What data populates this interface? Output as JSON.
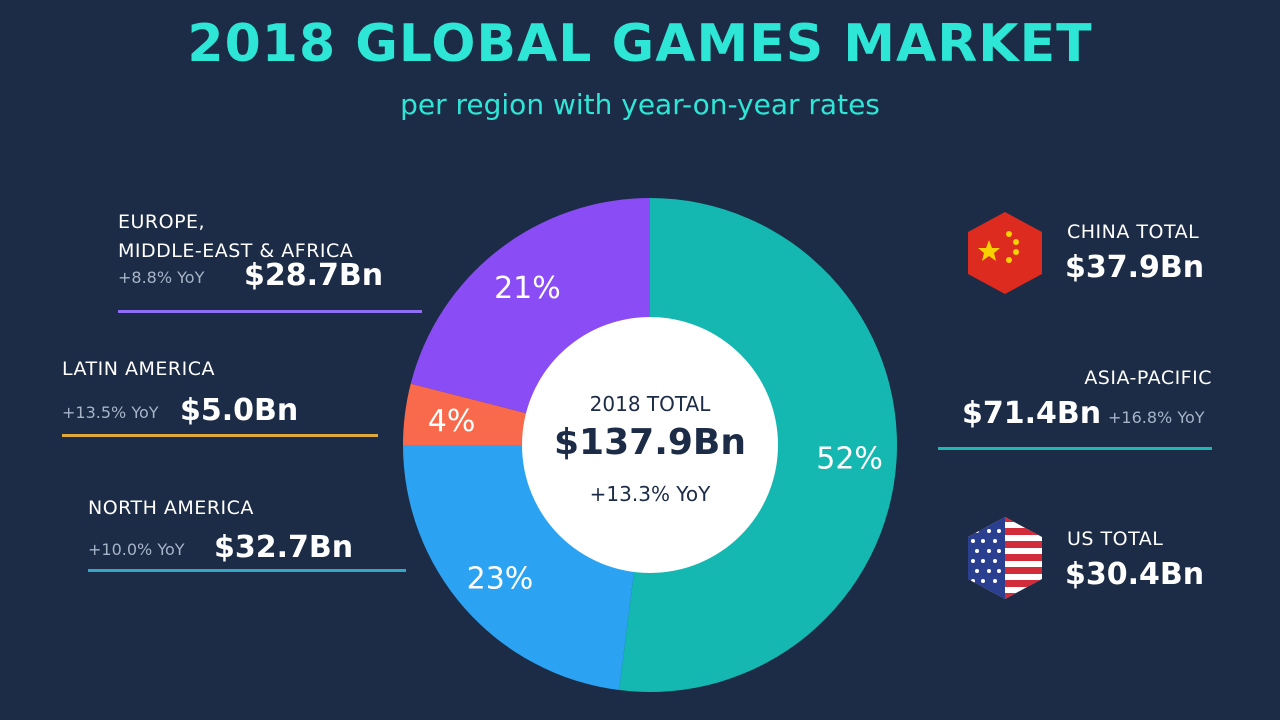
{
  "title": "2018 GLOBAL GAMES MARKET",
  "subtitle": "per region with year-on-year rates",
  "colors": {
    "background": "#1c2b46",
    "title": "#2ee6d6",
    "apac": "#14b8b0",
    "emea": "#8a4cf5",
    "latam": "#f86a4b",
    "na": "#2ba3f2",
    "emea_rule": "#8e6ef7",
    "latam_rule": "#e0a93a",
    "na_rule": "#35a7c6",
    "apac_rule": "#1fb7b4"
  },
  "center": {
    "label": "2018 TOTAL",
    "total": "$137.9Bn",
    "yoy": "+13.3% YoY"
  },
  "regions": {
    "emea": {
      "name_line1": "EUROPE,",
      "name_line2": "MIDDLE-EAST & AFRICA",
      "yoy": "+8.8% YoY",
      "amount": "$28.7Bn"
    },
    "latam": {
      "name": "LATIN AMERICA",
      "yoy": "+13.5% YoY",
      "amount": "$5.0Bn"
    },
    "na": {
      "name": "NORTH AMERICA",
      "yoy": "+10.0% YoY",
      "amount": "$32.7Bn"
    },
    "apac": {
      "name": "ASIA-PACIFIC",
      "yoy": "+16.8% YoY",
      "amount": "$71.4Bn"
    }
  },
  "countries": {
    "china": {
      "name": "CHINA TOTAL",
      "amount": "$37.9Bn",
      "flag_icon": "china-flag-icon"
    },
    "us": {
      "name": "US TOTAL",
      "amount": "$30.4Bn",
      "flag_icon": "us-flag-icon"
    }
  },
  "chart_data": {
    "type": "pie",
    "categories": [
      "Asia-Pacific",
      "North America",
      "Latin America",
      "Europe, Middle-East & Africa"
    ],
    "values": [
      52,
      23,
      4,
      21
    ],
    "labels": [
      "52%",
      "23%",
      "4%",
      "21%"
    ],
    "amounts_bn": [
      71.4,
      32.7,
      5.0,
      28.7
    ],
    "yoy_percent": [
      16.8,
      10.0,
      13.5,
      8.8
    ],
    "total_bn": 137.9,
    "total_yoy_percent": 13.3
  }
}
